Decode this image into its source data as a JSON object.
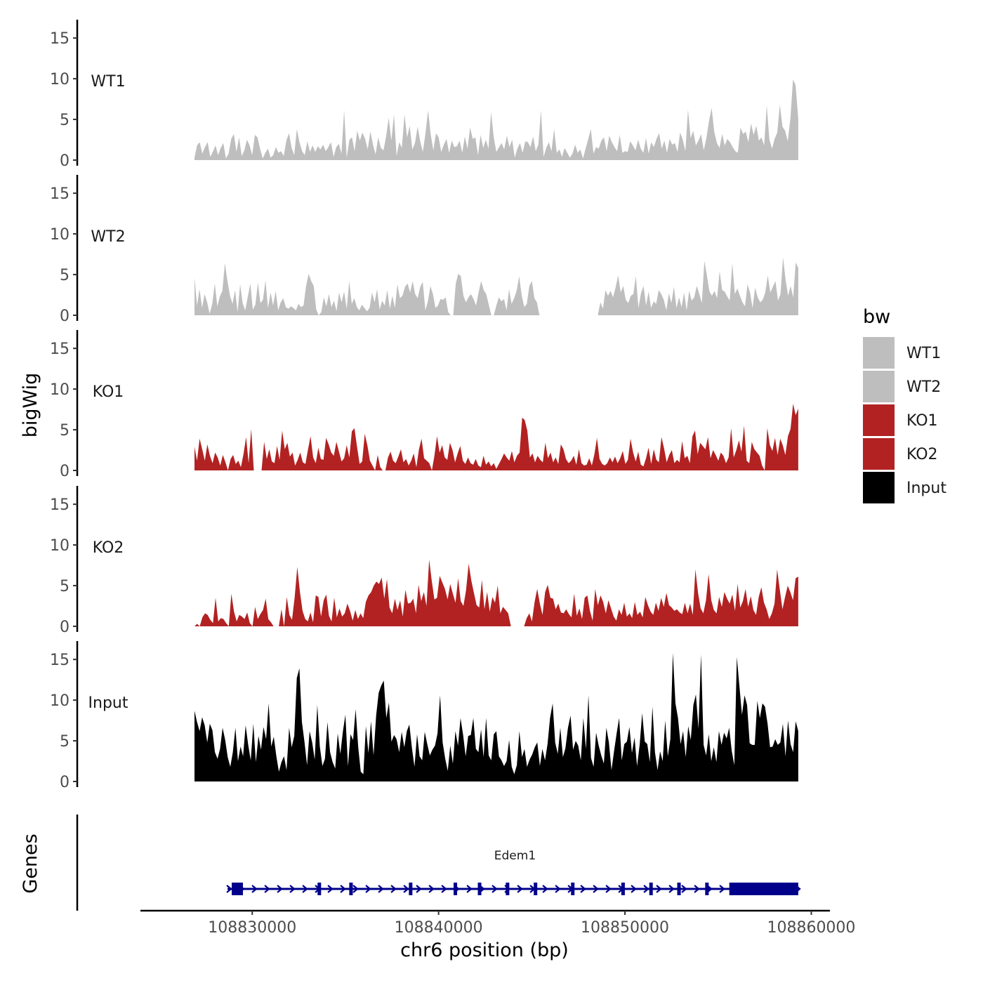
{
  "chart_data": {
    "type": "area",
    "title": "",
    "xlabel": "chr6 position (bp)",
    "ylabel": "bigWig",
    "genes_label": "Genes",
    "xlim": [
      108824000,
      108861000
    ],
    "x_ticks": [
      108830000,
      108840000,
      108850000,
      108860000
    ],
    "x_tick_labels": [
      "108830000",
      "108840000",
      "108850000",
      "108860000"
    ],
    "ylim": [
      0,
      17
    ],
    "y_ticks": [
      0,
      5,
      10,
      15
    ],
    "y_tick_labels": [
      "0",
      "5",
      "10",
      "15"
    ],
    "legend": {
      "title": "bw",
      "position": "right",
      "entries": [
        {
          "name": "WT1",
          "color": "#bebebe"
        },
        {
          "name": "WT2",
          "color": "#bebebe"
        },
        {
          "name": "KO1",
          "color": "#b22222"
        },
        {
          "name": "KO2",
          "color": "#b22222"
        },
        {
          "name": "Input",
          "color": "#000000"
        }
      ]
    },
    "series_x_start": 108826900,
    "series_x_end": 108859300,
    "series": [
      {
        "name": "WT1",
        "color": "#bebebe",
        "values": [
          0.3,
          1.8,
          2.2,
          0.8,
          1.6,
          2.2,
          0.4,
          1.0,
          1.8,
          0.6,
          1.5,
          2.1,
          0.2,
          0.8,
          2.6,
          3.2,
          1.0,
          2.8,
          0.5,
          1.2,
          2.5,
          1.8,
          0.6,
          3.1,
          2.8,
          1.4,
          0.2,
          0.9,
          1.4,
          0.3,
          0.6,
          1.6,
          0.9,
          1.1,
          0.5,
          2.4,
          3.3,
          1.5,
          0.6,
          3.8,
          2.2,
          1.1,
          0.6,
          2.3,
          1.0,
          1.8,
          1.0,
          1.7,
          1.3,
          1.9,
          1.1,
          1.6,
          2.2,
          0.4,
          1.6,
          2.0,
          0.8,
          6.1,
          0.3,
          2.5,
          2.8,
          1.1,
          3.6,
          2.4,
          3.4,
          2.6,
          1.3,
          3.5,
          1.9,
          0.7,
          2.8,
          1.5,
          1.2,
          2.9,
          5.2,
          2.4,
          5.6,
          0.5,
          2.2,
          1.5,
          5.6,
          2.8,
          4.2,
          1.3,
          2.1,
          4.1,
          2.3,
          1.0,
          3.3,
          6.1,
          3.1,
          1.2,
          3.3,
          2.8,
          1.0,
          1.9,
          2.6,
          0.9,
          2.4,
          1.6,
          1.7,
          2.4,
          0.9,
          2.9,
          1.4,
          4.0,
          2.6,
          2.8,
          0.6,
          3.1,
          1.5,
          2.5,
          1.4,
          5.9,
          2.8,
          1.0,
          1.6,
          2.1,
          1.3,
          3.0,
          1.6,
          2.5,
          0.3,
          1.4,
          2.1,
          0.9,
          2.3,
          2.2,
          1.6,
          2.9,
          1.1,
          1.9,
          6.1,
          0.4,
          1.5,
          2.2,
          1.1,
          3.8,
          0.9,
          1.3,
          0.4,
          1.5,
          0.9,
          0.3,
          0.8,
          1.9,
          0.9,
          1.3,
          0.2,
          1.4,
          2.6,
          3.8,
          0.8,
          1.6,
          1.4,
          2.4,
          2.8,
          1.1,
          3.0,
          2.2,
          1.6,
          1.1,
          3.1,
          0.9,
          1.1,
          1.0,
          2.3,
          1.8,
          1.2,
          2.5,
          1.4,
          0.9,
          2.7,
          0.8,
          2.2,
          1.6,
          2.6,
          3.3,
          1.4,
          2.4,
          0.9,
          2.6,
          1.9,
          2.1,
          1.0,
          3.4,
          2.5,
          1.1,
          6.2,
          2.7,
          3.6,
          1.8,
          2.4,
          3.2,
          1.2,
          2.7,
          4.8,
          6.4,
          3.5,
          2.1,
          1.5,
          3.2,
          1.8,
          2.6,
          2.2,
          1.6,
          1.1,
          0.9,
          4.0,
          3.2,
          3.5,
          2.2,
          4.5,
          3.1,
          4.2,
          2.4,
          2.8,
          1.8,
          6.7,
          2.5,
          1.4,
          2.6,
          3.4,
          6.8,
          4.1,
          3.6,
          2.3,
          5.1,
          9.9,
          9.2,
          5.1
        ]
      },
      {
        "name": "WT2",
        "color": "#bebebe",
        "values": [
          4.6,
          1.2,
          3.2,
          0.9,
          2.6,
          1.6,
          0.2,
          1.4,
          3.9,
          1.1,
          2.3,
          3.0,
          6.4,
          4.2,
          2.4,
          1.4,
          3.1,
          0.4,
          3.8,
          1.5,
          0.6,
          2.2,
          3.9,
          0.7,
          1.3,
          4.0,
          1.5,
          1.9,
          4.3,
          0.9,
          2.8,
          1.2,
          3.0,
          0.6,
          1.6,
          2.1,
          1.0,
          0.8,
          1.1,
          0.9,
          0.6,
          1.4,
          1.0,
          1.2,
          3.6,
          5.1,
          4.2,
          3.6,
          0.7,
          0.0,
          0.4,
          2.2,
          1.1,
          2.6,
          1.0,
          1.8,
          0.5,
          2.8,
          1.6,
          2.9,
          0.8,
          4.2,
          1.4,
          2.1,
          1.0,
          0.6,
          1.3,
          0.9,
          0.5,
          0.9,
          2.8,
          1.6,
          3.2,
          0.7,
          1.8,
          1.2,
          3.1,
          0.8,
          2.4,
          0.9,
          3.8,
          2.1,
          2.4,
          3.5,
          3.9,
          2.8,
          4.2,
          2.6,
          2.1,
          3.5,
          4.1,
          0.6,
          1.7,
          3.6,
          2.6,
          0.9,
          1.2,
          2.0,
          1.9,
          2.2,
          0.4,
          0.0,
          0.0,
          3.9,
          5.1,
          4.8,
          2.4,
          1.6,
          2.2,
          2.6,
          2.0,
          1.2,
          2.8,
          4.2,
          3.1,
          2.6,
          1.3,
          0.0,
          0.0,
          1.2,
          2.2,
          1.7,
          2.0,
          0.6,
          3.2,
          1.4,
          2.1,
          3.0,
          4.8,
          2.4,
          1.0,
          1.4,
          3.6,
          4.2,
          2.1,
          1.6,
          0.0,
          0.0,
          0.0,
          0.0,
          0.0,
          0.0,
          0.0,
          0.0,
          0.0,
          0.0,
          0.0,
          0.0,
          0.0,
          0.0,
          0.0,
          0.0,
          0.0,
          0.0,
          0.0,
          0.0,
          0.0,
          0.0,
          0.0,
          0.0,
          1.6,
          0.8,
          3.1,
          2.4,
          3.0,
          2.2,
          3.4,
          4.9,
          2.8,
          3.6,
          1.9,
          1.5,
          2.4,
          2.6,
          4.8,
          0.9,
          2.7,
          3.6,
          1.2,
          2.9,
          0.9,
          1.7,
          1.4,
          3.1,
          2.6,
          1.9,
          0.6,
          2.7,
          1.5,
          3.5,
          0.9,
          2.2,
          1.0,
          2.8,
          0.6,
          3.0,
          1.8,
          2.2,
          3.6,
          2.6,
          1.5,
          6.7,
          4.9,
          2.9,
          2.4,
          3.0,
          2.1,
          5.4,
          3.1,
          2.9,
          2.3,
          1.8,
          6.4,
          2.6,
          3.3,
          2.4,
          1.6,
          1.1,
          3.8,
          2.8,
          0.9,
          3.4,
          2.2,
          1.6,
          1.9,
          2.8,
          4.9,
          2.8,
          3.5,
          4.2,
          1.8,
          2.6,
          7.1,
          4.4,
          2.4,
          3.6,
          2.2,
          6.5,
          5.8
        ]
      },
      {
        "name": "KO1",
        "color": "#b22222",
        "values": [
          2.9,
          1.2,
          3.9,
          2.6,
          1.2,
          3.2,
          1.8,
          0.9,
          2.2,
          1.6,
          0.6,
          1.9,
          1.0,
          0.0,
          1.4,
          1.9,
          0.8,
          1.2,
          0.4,
          2.0,
          4.1,
          0.9,
          5.1,
          0.0,
          0.0,
          0.0,
          0.0,
          3.5,
          1.4,
          2.6,
          1.1,
          0.9,
          3.0,
          1.3,
          4.9,
          2.6,
          3.4,
          1.7,
          2.2,
          0.6,
          1.3,
          2.2,
          1.0,
          0.8,
          2.6,
          4.2,
          1.6,
          0.9,
          2.8,
          1.4,
          1.3,
          4.0,
          3.2,
          2.2,
          1.8,
          3.5,
          2.3,
          1.1,
          1.5,
          3.1,
          1.6,
          4.8,
          5.2,
          2.9,
          0.8,
          1.1,
          4.5,
          3.1,
          1.2,
          0.6,
          0.0,
          1.9,
          0.4,
          0.0,
          0.0,
          1.6,
          2.3,
          1.2,
          0.9,
          1.7,
          2.6,
          1.0,
          1.4,
          0.6,
          1.2,
          2.1,
          0.4,
          2.6,
          3.9,
          1.5,
          1.2,
          0.9,
          0.0,
          1.8,
          4.2,
          2.2,
          3.1,
          1.6,
          1.3,
          3.4,
          2.5,
          1.0,
          2.1,
          3.0,
          1.2,
          0.8,
          1.6,
          0.9,
          0.7,
          1.4,
          0.6,
          0.4,
          1.8,
          0.7,
          1.1,
          0.5,
          0.9,
          0.2,
          0.8,
          1.4,
          2.1,
          1.6,
          1.2,
          2.4,
          1.0,
          1.8,
          2.2,
          6.5,
          6.2,
          4.9,
          1.6,
          2.1,
          1.0,
          1.8,
          1.3,
          1.0,
          3.4,
          1.5,
          2.2,
          1.0,
          1.6,
          0.8,
          3.2,
          2.6,
          1.4,
          0.9,
          1.2,
          1.8,
          0.7,
          2.6,
          0.9,
          0.6,
          0.7,
          1.5,
          0.6,
          2.0,
          4.0,
          1.4,
          0.8,
          0.6,
          0.9,
          1.6,
          1.0,
          1.7,
          0.9,
          1.5,
          2.4,
          0.8,
          1.3,
          3.9,
          2.2,
          1.1,
          2.3,
          0.7,
          0.5,
          1.5,
          2.8,
          0.8,
          2.6,
          1.3,
          1.0,
          4.1,
          2.7,
          1.0,
          1.9,
          2.5,
          0.9,
          1.3,
          1.0,
          3.6,
          1.5,
          1.8,
          0.9,
          4.2,
          4.9,
          2.0,
          3.4,
          3.0,
          2.6,
          4.1,
          1.5,
          2.5,
          1.9,
          1.2,
          2.2,
          1.8,
          0.9,
          1.6,
          5.2,
          1.6,
          2.5,
          3.7,
          2.3,
          5.5,
          1.2,
          0.9,
          3.5,
          2.6,
          2.2,
          1.8,
          0.6,
          0.0,
          5.2,
          3.1,
          2.4,
          4.0,
          1.9,
          3.9,
          3.1,
          1.9,
          4.2,
          5.1,
          8.2,
          6.8,
          7.6
        ]
      },
      {
        "name": "KO2",
        "color": "#b22222",
        "values": [
          0.0,
          0.3,
          0.0,
          1.1,
          1.6,
          1.4,
          0.8,
          0.4,
          3.5,
          0.6,
          1.0,
          0.9,
          0.4,
          0.0,
          4.0,
          1.8,
          0.6,
          1.4,
          1.2,
          0.9,
          1.7,
          0.4,
          0.0,
          2.4,
          0.9,
          1.5,
          2.0,
          3.4,
          0.9,
          0.5,
          0.0,
          0.0,
          0.0,
          2.1,
          0.0,
          3.6,
          1.4,
          0.8,
          3.6,
          7.3,
          4.2,
          1.9,
          0.9,
          0.6,
          1.7,
          0.5,
          3.8,
          3.6,
          1.2,
          3.2,
          3.9,
          1.3,
          0.6,
          3.5,
          1.1,
          2.2,
          1.2,
          1.6,
          2.8,
          1.9,
          0.7,
          2.0,
          0.9,
          1.6,
          1.0,
          3.0,
          3.8,
          4.2,
          5.0,
          5.5,
          5.2,
          6.0,
          3.4,
          5.8,
          2.3,
          1.6,
          3.4,
          2.0,
          3.2,
          1.2,
          4.5,
          2.8,
          2.9,
          3.4,
          1.6,
          5.1,
          3.1,
          4.2,
          2.5,
          8.2,
          5.6,
          3.3,
          3.5,
          6.2,
          5.4,
          4.6,
          3.3,
          5.2,
          4.0,
          2.9,
          5.9,
          3.1,
          2.5,
          4.4,
          7.7,
          5.6,
          4.1,
          2.6,
          2.3,
          5.7,
          2.1,
          4.2,
          1.8,
          3.6,
          2.9,
          5.0,
          1.6,
          2.4,
          2.0,
          1.6,
          0.0,
          0.0,
          0.0,
          0.0,
          0.0,
          0.0,
          1.0,
          1.6,
          0.6,
          3.0,
          4.6,
          2.8,
          1.4,
          4.2,
          5.1,
          3.5,
          3.4,
          2.1,
          2.8,
          1.7,
          1.6,
          2.1,
          1.5,
          1.1,
          4.0,
          1.3,
          2.2,
          0.9,
          3.5,
          3.8,
          1.9,
          0.7,
          4.6,
          2.6,
          3.8,
          3.0,
          1.6,
          3.2,
          2.2,
          1.2,
          0.7,
          2.1,
          1.4,
          2.9,
          1.2,
          1.6,
          1.0,
          3.0,
          1.4,
          1.8,
          1.1,
          3.6,
          2.6,
          1.8,
          1.4,
          2.9,
          1.9,
          3.5,
          2.4,
          4.1,
          2.6,
          2.3,
          1.9,
          2.1,
          1.7,
          1.5,
          2.9,
          1.6,
          2.8,
          1.4,
          7.0,
          4.1,
          2.2,
          1.6,
          3.2,
          6.4,
          3.2,
          2.0,
          1.6,
          3.6,
          2.4,
          4.2,
          3.4,
          2.8,
          3.9,
          1.9,
          5.2,
          2.3,
          3.1,
          4.6,
          2.4,
          3.7,
          2.0,
          1.4,
          3.6,
          4.8,
          2.9,
          2.1,
          0.9,
          1.6,
          2.8,
          7.0,
          4.5,
          2.1,
          3.6,
          5.0,
          4.2,
          3.2,
          5.9,
          6.1
        ]
      },
      {
        "name": "Input",
        "color": "#000000",
        "values": [
          8.7,
          7.3,
          6.2,
          7.9,
          6.9,
          4.8,
          7.1,
          6.3,
          3.6,
          2.8,
          4.0,
          6.6,
          5.1,
          3.0,
          1.8,
          3.6,
          6.6,
          2.5,
          4.3,
          3.1,
          6.9,
          4.5,
          2.6,
          7.1,
          2.4,
          5.6,
          3.9,
          6.7,
          5.2,
          9.6,
          4.3,
          5.5,
          3.1,
          1.2,
          2.4,
          3.1,
          1.4,
          6.6,
          4.2,
          5.6,
          12.7,
          13.9,
          7.3,
          4.9,
          2.0,
          6.2,
          4.8,
          2.7,
          9.4,
          4.3,
          1.9,
          2.8,
          7.3,
          3.6,
          2.4,
          1.6,
          5.9,
          3.4,
          6.1,
          8.2,
          1.9,
          5.8,
          5.1,
          8.9,
          4.2,
          1.2,
          0.9,
          6.8,
          3.5,
          7.4,
          3.2,
          8.1,
          10.9,
          11.8,
          12.4,
          7.8,
          9.7,
          4.9,
          5.7,
          5.2,
          3.6,
          6.1,
          4.2,
          6.2,
          7.0,
          4.1,
          1.8,
          5.8,
          3.1,
          2.6,
          6.1,
          4.6,
          3.2,
          3.9,
          4.4,
          5.9,
          10.6,
          4.8,
          2.8,
          1.3,
          4.4,
          2.2,
          6.2,
          4.4,
          7.8,
          5.7,
          3.1,
          5.6,
          5.7,
          7.8,
          4.0,
          3.6,
          6.4,
          3.0,
          7.8,
          3.2,
          2.6,
          5.8,
          6.2,
          3.1,
          2.6,
          1.9,
          2.5,
          5.1,
          1.8,
          0.9,
          2.0,
          6.2,
          3.0,
          4.0,
          1.8,
          2.7,
          3.3,
          4.2,
          4.8,
          1.9,
          4.0,
          2.6,
          4.6,
          7.8,
          9.6,
          4.8,
          3.4,
          6.6,
          3.0,
          4.1,
          6.6,
          8.1,
          3.9,
          5.0,
          4.4,
          2.6,
          7.8,
          4.0,
          10.6,
          2.9,
          1.8,
          6.0,
          4.4,
          3.2,
          2.2,
          6.6,
          4.8,
          1.4,
          3.7,
          5.9,
          7.8,
          2.6,
          4.6,
          4.9,
          6.7,
          3.5,
          5.4,
          1.9,
          4.5,
          8.4,
          4.9,
          4.6,
          2.4,
          9.2,
          3.6,
          1.4,
          3.7,
          2.5,
          7.5,
          3.1,
          5.2,
          15.8,
          9.6,
          7.8,
          4.6,
          6.2,
          3.0,
          6.8,
          5.1,
          9.4,
          10.7,
          6.5,
          15.6,
          4.5,
          3.2,
          5.8,
          2.5,
          4.2,
          2.4,
          6.2,
          4.5,
          6.0,
          5.3,
          6.6,
          3.8,
          2.0,
          15.3,
          11.7,
          8.2,
          10.6,
          9.4,
          4.7,
          4.5,
          4.5,
          9.9,
          7.8,
          9.6,
          9.2,
          7.1,
          4.2,
          4.3,
          5.2,
          4.5,
          4.8,
          7.1,
          3.1,
          7.5,
          4.6,
          3.6,
          7.4,
          6.2
        ]
      }
    ],
    "gene": {
      "name": "Edem1",
      "strand": "+",
      "start": 108828900,
      "end": 108859300,
      "thick_blocks": [
        [
          108828900,
          108829500
        ],
        [
          108855600,
          108859300
        ]
      ],
      "exons": [
        108833600,
        108835300,
        108838500,
        108840900,
        108842200,
        108843700,
        108845200,
        108847200,
        108849900,
        108851400,
        108852900,
        108854400
      ],
      "color": "#00008b"
    }
  }
}
